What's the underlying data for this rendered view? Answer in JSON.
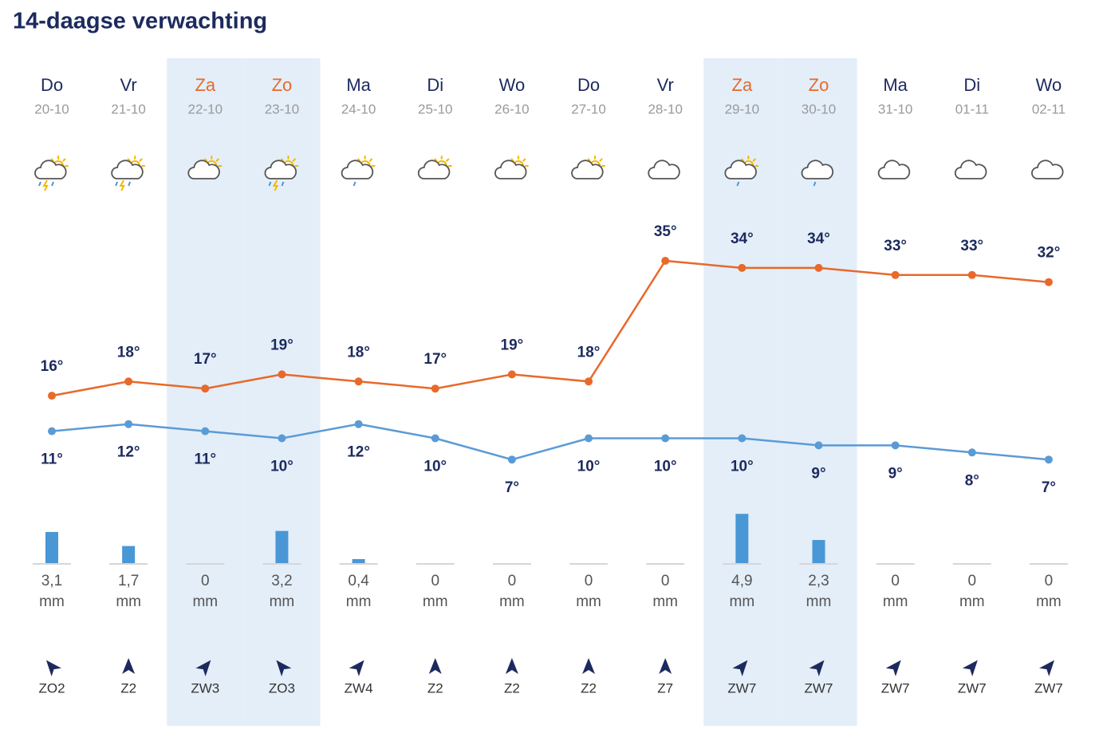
{
  "chart_data": {
    "type": "line",
    "title": "14-daagse verwachting",
    "categories": [
      "Do",
      "Vr",
      "Za",
      "Zo",
      "Ma",
      "Di",
      "Wo",
      "Do",
      "Vr",
      "Za",
      "Zo",
      "Ma",
      "Di",
      "Wo"
    ],
    "dates": [
      "20-10",
      "21-10",
      "22-10",
      "23-10",
      "24-10",
      "25-10",
      "26-10",
      "27-10",
      "28-10",
      "29-10",
      "30-10",
      "31-10",
      "01-11",
      "02-11"
    ],
    "highlight_columns": [
      2,
      3,
      9,
      10
    ],
    "highlight_color": "#e3eef9",
    "highlight_label_color": "#e8692a",
    "series": [
      {
        "color": "#e8692a",
        "values": [
          16,
          18,
          17,
          19,
          18,
          17,
          19,
          18,
          35,
          34,
          34,
          33,
          33,
          32
        ],
        "value_labels": [
          "16°",
          "18°",
          "17°",
          "19°",
          "18°",
          "17°",
          "19°",
          "18°",
          "35°",
          "34°",
          "34°",
          "33°",
          "33°",
          "32°"
        ]
      },
      {
        "color": "#5b9bd5",
        "values": [
          11,
          12,
          11,
          10,
          12,
          10,
          7,
          10,
          10,
          10,
          9,
          9,
          8,
          7
        ],
        "value_labels": [
          "11°",
          "12°",
          "11°",
          "10°",
          "12°",
          "10°",
          "7°",
          "10°",
          "10°",
          "10°",
          "9°",
          "9°",
          "8°",
          "7°"
        ]
      }
    ],
    "precipitation": {
      "type": "bar",
      "color": "#4a97d6",
      "unit": "mm",
      "values": [
        3.1,
        1.7,
        0,
        3.2,
        0.4,
        0,
        0,
        0,
        0,
        4.9,
        2.3,
        0,
        0,
        0
      ],
      "value_labels": [
        "3,1",
        "1,7",
        "0",
        "3,2",
        "0,4",
        "0",
        "0",
        "0",
        "0",
        "4,9",
        "2,3",
        "0",
        "0",
        "0"
      ]
    },
    "wind": [
      "ZO2",
      "Z2",
      "ZW3",
      "ZO3",
      "ZW4",
      "Z2",
      "Z2",
      "Z2",
      "Z7",
      "ZW7",
      "ZW7",
      "ZW7",
      "ZW7",
      "ZW7"
    ]
  }
}
